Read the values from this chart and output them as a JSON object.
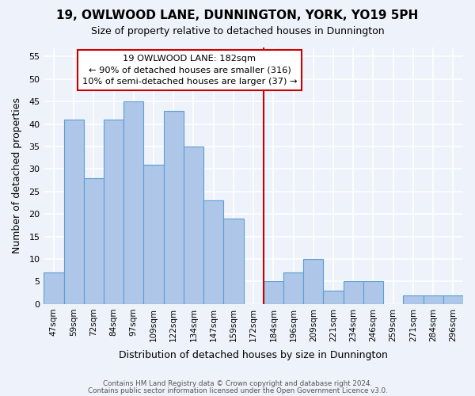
{
  "title": "19, OWLWOOD LANE, DUNNINGTON, YORK, YO19 5PH",
  "subtitle": "Size of property relative to detached houses in Dunnington",
  "xlabel": "Distribution of detached houses by size in Dunnington",
  "ylabel": "Number of detached properties",
  "bin_labels": [
    "47sqm",
    "59sqm",
    "72sqm",
    "84sqm",
    "97sqm",
    "109sqm",
    "122sqm",
    "134sqm",
    "147sqm",
    "159sqm",
    "172sqm",
    "184sqm",
    "196sqm",
    "209sqm",
    "221sqm",
    "234sqm",
    "246sqm",
    "259sqm",
    "271sqm",
    "284sqm",
    "296sqm"
  ],
  "bar_heights": [
    7,
    41,
    28,
    41,
    45,
    31,
    43,
    35,
    23,
    19,
    0,
    5,
    7,
    10,
    3,
    5,
    5,
    0,
    2,
    2,
    2
  ],
  "bar_color": "#aec6e8",
  "bar_edge_color": "#5a9fd4",
  "vline_x_index": 11,
  "vline_color": "#cc0000",
  "annotation_title": "19 OWLWOOD LANE: 182sqm",
  "annotation_line1": "← 90% of detached houses are smaller (316)",
  "annotation_line2": "10% of semi-detached houses are larger (37) →",
  "annotation_box_color": "#ffffff",
  "annotation_box_edge": "#cc0000",
  "ylim": [
    0,
    57
  ],
  "yticks": [
    0,
    5,
    10,
    15,
    20,
    25,
    30,
    35,
    40,
    45,
    50,
    55
  ],
  "footer_line1": "Contains HM Land Registry data © Crown copyright and database right 2024.",
  "footer_line2": "Contains public sector information licensed under the Open Government Licence v3.0.",
  "background_color": "#eef2fa",
  "grid_color": "#ffffff"
}
